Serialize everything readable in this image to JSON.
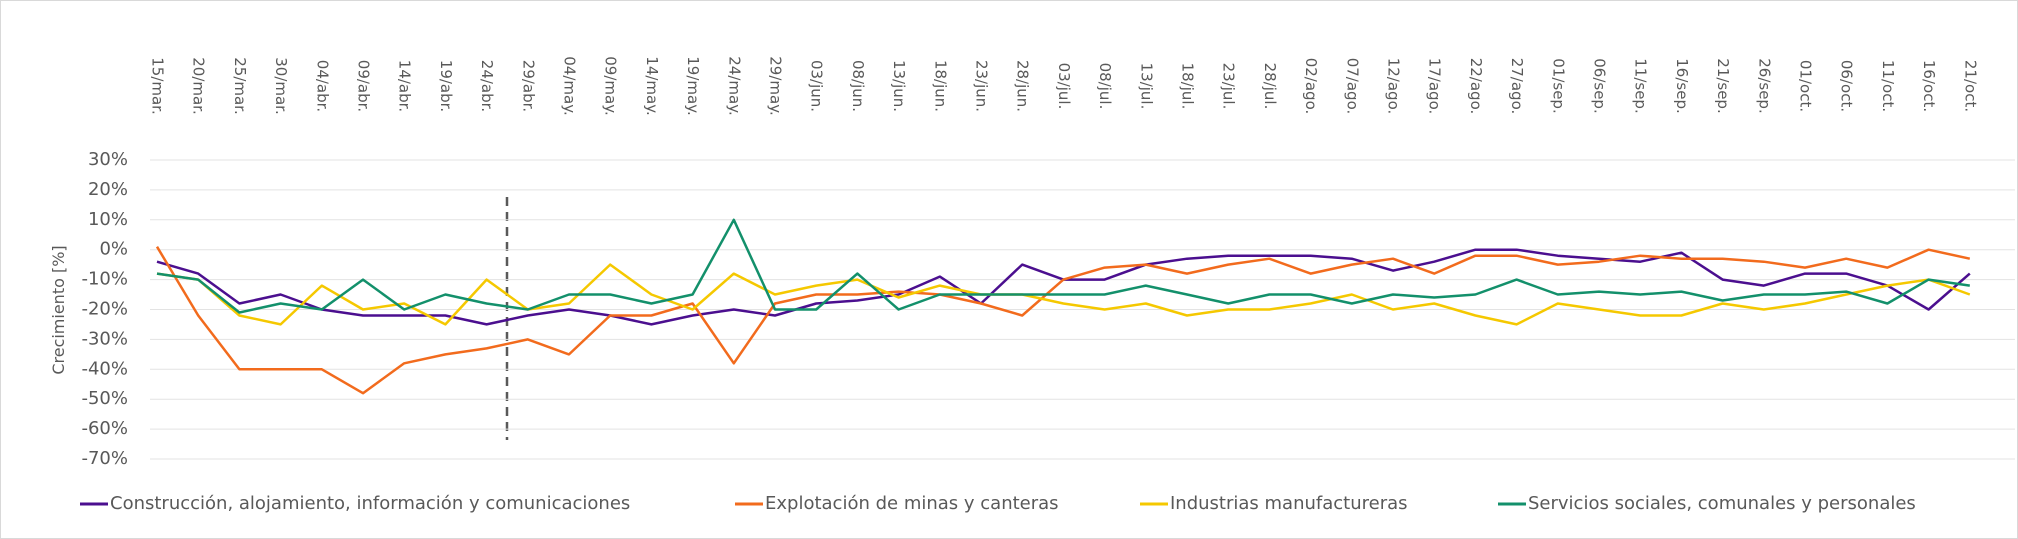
{
  "chart_data": {
    "type": "line",
    "y_label": "Crecimiento [%]",
    "categories": [
      "15/mar.",
      "20/mar.",
      "25/mar.",
      "30/mar.",
      "04/abr.",
      "09/abr.",
      "14/abr.",
      "19/abr.",
      "24/abr.",
      "29/abr.",
      "04/may.",
      "09/may.",
      "14/may.",
      "19/may.",
      "24/may.",
      "29/may.",
      "03/jun.",
      "08/jun.",
      "13/jun.",
      "18/jun.",
      "23/jun.",
      "28/jun.",
      "03/jul.",
      "08/jul.",
      "13/jul.",
      "18/jul.",
      "23/jul.",
      "28/jul.",
      "02/ago.",
      "07/ago.",
      "12/ago.",
      "17/ago.",
      "22/ago.",
      "27/ago.",
      "01/sep.",
      "06/sep.",
      "11/sep.",
      "16/sep.",
      "21/sep.",
      "26/sep.",
      "01/oct.",
      "06/oct.",
      "11/oct.",
      "16/oct.",
      "21/oct."
    ],
    "series": [
      {
        "name": "Construcción, alojamiento, información y comunicaciones",
        "color": "#4b0f8f",
        "values": [
          -4,
          -8,
          -18,
          -15,
          -20,
          -22,
          -22,
          -22,
          -25,
          -22,
          -20,
          -22,
          -25,
          -22,
          -20,
          -22,
          -18,
          -17,
          -15,
          -9,
          -18,
          -5,
          -10,
          -10,
          -5,
          -3,
          -2,
          -2,
          -2,
          -3,
          -7,
          -4,
          0,
          0,
          -2,
          -3,
          -4,
          -1,
          -10,
          -12,
          -8,
          -8,
          -12,
          -20,
          -8
        ]
      },
      {
        "name": "Explotación de minas y canteras",
        "color": "#f26b1d",
        "values": [
          1,
          -22,
          -40,
          -40,
          -40,
          -48,
          -38,
          -35,
          -33,
          -30,
          -35,
          -22,
          -22,
          -18,
          -38,
          -18,
          -15,
          -15,
          -14,
          -15,
          -18,
          -22,
          -10,
          -6,
          -5,
          -8,
          -5,
          -3,
          -8,
          -5,
          -3,
          -8,
          -2,
          -2,
          -5,
          -4,
          -2,
          -3,
          -3,
          -4,
          -6,
          -3,
          -6,
          0,
          -3
        ]
      },
      {
        "name": "Industrias manufactureras",
        "color": "#f5c800",
        "values": [
          -8,
          -10,
          -22,
          -25,
          -12,
          -20,
          -18,
          -25,
          -10,
          -20,
          -18,
          -5,
          -15,
          -20,
          -8,
          -15,
          -12,
          -10,
          -16,
          -12,
          -15,
          -15,
          -18,
          -20,
          -18,
          -22,
          -20,
          -20,
          -18,
          -15,
          -20,
          -18,
          -22,
          -25,
          -18,
          -20,
          -22,
          -22,
          -18,
          -20,
          -18,
          -15,
          -12,
          -10,
          -15
        ]
      },
      {
        "name": "Servicios sociales, comunales y personales",
        "color": "#13906b",
        "values": [
          -8,
          -10,
          -21,
          -18,
          -20,
          -10,
          -20,
          -15,
          -18,
          -20,
          -15,
          -15,
          -18,
          -15,
          10,
          -20,
          -20,
          -8,
          -20,
          -15,
          -15,
          -15,
          -15,
          -15,
          -12,
          -15,
          -18,
          -15,
          -15,
          -18,
          -15,
          -16,
          -15,
          -10,
          -15,
          -14,
          -15,
          -14,
          -17,
          -15,
          -15,
          -14,
          -18,
          -10,
          -12
        ]
      }
    ],
    "ylim": [
      -70,
      30
    ],
    "yticks": [
      {
        "value": 30,
        "label": "30%"
      },
      {
        "value": 20,
        "label": "20%"
      },
      {
        "value": 10,
        "label": "10%"
      },
      {
        "value": 0,
        "label": "0%"
      },
      {
        "value": -10,
        "label": "-10%"
      },
      {
        "value": -20,
        "label": "-20%"
      },
      {
        "value": -30,
        "label": "-30%"
      },
      {
        "value": -40,
        "label": "-40%"
      },
      {
        "value": -50,
        "label": "-50%"
      },
      {
        "value": -60,
        "label": "-60%"
      },
      {
        "value": -70,
        "label": "-70%"
      }
    ],
    "grid": true
  }
}
